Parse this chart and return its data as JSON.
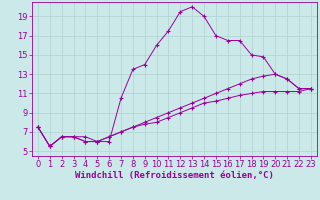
{
  "background_color": "#cce9e9",
  "grid_color": "#b0d0d0",
  "line_color": "#990099",
  "marker": "+",
  "xlabel": "Windchill (Refroidissement éolien,°C)",
  "xlabel_fontsize": 6.5,
  "tick_fontsize": 6,
  "xlim": [
    -0.5,
    23.5
  ],
  "ylim": [
    4.5,
    20.5
  ],
  "yticks": [
    5,
    7,
    9,
    11,
    13,
    15,
    17,
    19
  ],
  "xticks": [
    0,
    1,
    2,
    3,
    4,
    5,
    6,
    7,
    8,
    9,
    10,
    11,
    12,
    13,
    14,
    15,
    16,
    17,
    18,
    19,
    20,
    21,
    22,
    23
  ],
  "lines": [
    {
      "x": [
        0,
        1,
        2,
        3,
        4,
        5,
        6,
        7,
        8,
        9,
        10,
        11,
        12,
        13,
        14,
        15,
        16,
        17,
        18,
        19,
        20,
        21,
        22,
        23
      ],
      "y": [
        7.5,
        5.5,
        6.5,
        6.5,
        6.5,
        6.0,
        6.0,
        10.5,
        13.5,
        14.0,
        16.0,
        17.5,
        19.5,
        20.0,
        19.0,
        17.0,
        16.5,
        16.5,
        15.0,
        14.8,
        13.0,
        12.5,
        11.5,
        11.5
      ]
    },
    {
      "x": [
        0,
        1,
        2,
        3,
        4,
        5,
        6,
        7,
        8,
        9,
        10,
        11,
        12,
        13,
        14,
        15,
        16,
        17,
        18,
        19,
        20,
        21,
        22,
        23
      ],
      "y": [
        7.5,
        5.5,
        6.5,
        6.5,
        6.0,
        6.0,
        6.5,
        7.0,
        7.5,
        8.0,
        8.5,
        9.0,
        9.5,
        10.0,
        10.5,
        11.0,
        11.5,
        12.0,
        12.5,
        12.8,
        13.0,
        12.5,
        11.5,
        11.5
      ]
    },
    {
      "x": [
        0,
        1,
        2,
        3,
        4,
        5,
        6,
        7,
        8,
        9,
        10,
        11,
        12,
        13,
        14,
        15,
        16,
        17,
        18,
        19,
        20,
        21,
        22,
        23
      ],
      "y": [
        7.5,
        5.5,
        6.5,
        6.5,
        6.0,
        6.0,
        6.5,
        7.0,
        7.5,
        7.8,
        8.0,
        8.5,
        9.0,
        9.5,
        10.0,
        10.2,
        10.5,
        10.8,
        11.0,
        11.2,
        11.2,
        11.2,
        11.2,
        11.5
      ]
    }
  ],
  "figsize": [
    3.2,
    2.0
  ],
  "dpi": 100
}
